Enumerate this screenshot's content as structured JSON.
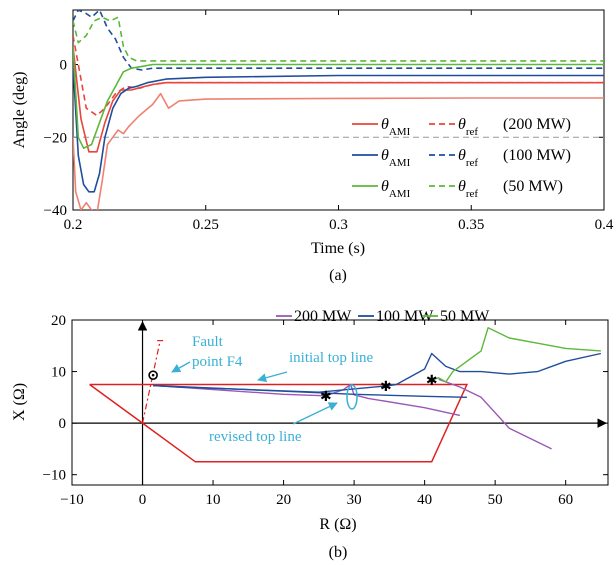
{
  "colors": {
    "red": "#e8453c",
    "blue": "#1f4e9c",
    "green": "#5cb83a",
    "purple": "#9b59b6",
    "cyan": "#3ab0d6",
    "gray": "#999999",
    "zone": "#e02020",
    "light_red": "#f08070"
  },
  "chart_data": [
    {
      "type": "line",
      "caption": "(a)",
      "xlabel": "Time (s)",
      "ylabel": "Angle (deg)",
      "xlim": [
        0.2,
        0.4
      ],
      "ylim": [
        -40,
        15
      ],
      "xticks": [
        "0.2",
        "0.25",
        "0.3",
        "0.35",
        "0.4"
      ],
      "yticks": [
        "−40",
        "−20",
        "0"
      ],
      "hline": -20,
      "grid": false,
      "legend_position": "lower-right",
      "legend": [
        {
          "sub_ami": "AMI",
          "sub_ref": "ref",
          "label": "(200 MW)",
          "color_key": "red"
        },
        {
          "sub_ami": "AMI",
          "sub_ref": "ref",
          "label": "(100 MW)",
          "color_key": "blue"
        },
        {
          "sub_ami": "AMI",
          "sub_ref": "ref",
          "label": "(50 MW)",
          "color_key": "green"
        }
      ],
      "theta": "θ",
      "series": [
        {
          "color_key": "light_red",
          "dash": false,
          "x": [
            0.2,
            0.201,
            0.203,
            0.205,
            0.207,
            0.209,
            0.211,
            0.213,
            0.215,
            0.217,
            0.219,
            0.221,
            0.225,
            0.23,
            0.233,
            0.236,
            0.24,
            0.25,
            0.3,
            0.35,
            0.4
          ],
          "y": [
            -20,
            -35,
            -40,
            -38,
            -40,
            -41,
            -32,
            -22,
            -20,
            -18,
            -19,
            -17,
            -14,
            -11,
            -8,
            -12,
            -10,
            -9.5,
            -9.3,
            -9.2,
            -9.2
          ]
        },
        {
          "color_key": "red",
          "dash": false,
          "x": [
            0.2,
            0.203,
            0.206,
            0.209,
            0.212,
            0.215,
            0.218,
            0.222,
            0.226,
            0.23,
            0.235,
            0.24,
            0.25,
            0.3,
            0.35,
            0.4
          ],
          "y": [
            5,
            -15,
            -24,
            -24,
            -16,
            -10,
            -7,
            -7,
            -6.2,
            -5.5,
            -5,
            -5,
            -5,
            -5,
            -5,
            -5
          ]
        },
        {
          "color_key": "red",
          "dash": true,
          "x": [
            0.2,
            0.205,
            0.209,
            0.212,
            0.216,
            0.22,
            0.225,
            0.23,
            0.235,
            0.24,
            0.25,
            0.3,
            0.35,
            0.4
          ],
          "y": [
            8,
            -12,
            -14,
            -12,
            -8,
            -6,
            -6.5,
            -5.5,
            -5,
            -5,
            -5,
            -5,
            -5,
            -5
          ]
        },
        {
          "color_key": "blue",
          "dash": false,
          "x": [
            0.2,
            0.202,
            0.204,
            0.206,
            0.208,
            0.21,
            0.212,
            0.215,
            0.218,
            0.221,
            0.224,
            0.228,
            0.235,
            0.25,
            0.3,
            0.35,
            0.4
          ],
          "y": [
            0,
            -25,
            -33,
            -35,
            -35,
            -30,
            -20,
            -12,
            -8,
            -6.5,
            -6,
            -5,
            -4,
            -3.5,
            -3,
            -3,
            -3
          ]
        },
        {
          "color_key": "blue",
          "dash": true,
          "x": [
            0.2,
            0.202,
            0.205,
            0.207,
            0.21,
            0.213,
            0.216,
            0.219,
            0.222,
            0.226,
            0.23,
            0.25,
            0.3,
            0.35,
            0.4
          ],
          "y": [
            12,
            15,
            14,
            13,
            15,
            10,
            7,
            2,
            -1,
            -1.5,
            -1,
            -1,
            -1,
            -1,
            -1
          ]
        },
        {
          "color_key": "green",
          "dash": false,
          "x": [
            0.2,
            0.202,
            0.204,
            0.207,
            0.21,
            0.213,
            0.216,
            0.219,
            0.222,
            0.226,
            0.23,
            0.25,
            0.3,
            0.35,
            0.4
          ],
          "y": [
            5,
            -20,
            -23,
            -22,
            -16,
            -10,
            -6,
            -2,
            -1,
            -0.5,
            0,
            0,
            0,
            0,
            0
          ]
        },
        {
          "color_key": "green",
          "dash": true,
          "x": [
            0.2,
            0.202,
            0.205,
            0.208,
            0.211,
            0.214,
            0.217,
            0.219,
            0.221,
            0.224,
            0.228,
            0.25,
            0.3,
            0.35,
            0.4
          ],
          "y": [
            12,
            6,
            8,
            12,
            13,
            12,
            13,
            5,
            2,
            1,
            1,
            1,
            1,
            1,
            1
          ]
        }
      ]
    },
    {
      "type": "line",
      "caption": "(b)",
      "xlabel": "R (Ω)",
      "ylabel": "X (Ω)",
      "xlim": [
        -10,
        66
      ],
      "ylim": [
        -12,
        20
      ],
      "xticks": [
        "−10",
        "0",
        "10",
        "20",
        "30",
        "40",
        "50",
        "60"
      ],
      "yticks": [
        "−10",
        "0",
        "10",
        "20"
      ],
      "grid": false,
      "legend_position": "top",
      "legend": [
        {
          "label": "200 MW",
          "color_key": "purple"
        },
        {
          "label": "100 MW",
          "color_key": "blue"
        },
        {
          "label": "50 MW",
          "color_key": "green"
        }
      ],
      "annotations": {
        "fault": [
          "Fault",
          "point F4"
        ],
        "initial": "initial top line",
        "revised": "revised top line"
      },
      "zone": {
        "x": [
          -7.5,
          46,
          41,
          7.5,
          0,
          -7.5
        ],
        "y": [
          7.5,
          7.5,
          -7.5,
          -7.5,
          0,
          7.5
        ]
      },
      "relay_line": {
        "x": [
          0,
          2.5
        ],
        "y": [
          0,
          16
        ]
      },
      "fault_point": {
        "x": 1.5,
        "y": 9.3
      },
      "markers": {
        "x": [
          26,
          34.5,
          41
        ],
        "y": [
          5.3,
          7.2,
          8.4
        ]
      },
      "series": [
        {
          "color_key": "purple",
          "x": [
            1.5,
            3,
            10,
            20,
            26,
            28.5,
            29.5,
            30,
            32,
            40,
            45
          ],
          "y": [
            7.3,
            7.2,
            6.5,
            5.6,
            5.3,
            6.5,
            7.5,
            5.5,
            4.8,
            3,
            1.5
          ]
        },
        {
          "color_key": "purple",
          "x": [
            42,
            45,
            48,
            52,
            58
          ],
          "y": [
            8.5,
            7,
            5,
            -1,
            -5
          ]
        },
        {
          "color_key": "blue",
          "x": [
            1.5,
            5,
            15,
            25,
            34.5,
            36,
            38,
            40,
            41,
            43,
            45,
            48,
            52,
            56,
            60,
            65
          ],
          "y": [
            7.3,
            7,
            6.5,
            6,
            7.2,
            7.5,
            9,
            10.5,
            13.5,
            11,
            10,
            10,
            9.5,
            10,
            12,
            13.5
          ]
        },
        {
          "color_key": "blue",
          "x": [
            1.5,
            10,
            20,
            30,
            40,
            46
          ],
          "y": [
            7.3,
            6.8,
            6.2,
            5.6,
            5.2,
            5
          ]
        },
        {
          "color_key": "green",
          "x": [
            41,
            42,
            43,
            44,
            45,
            46,
            47,
            48,
            49,
            52,
            56,
            60,
            65
          ],
          "y": [
            8.4,
            8.8,
            8,
            10,
            11,
            12,
            13,
            14,
            18.5,
            16.5,
            15.5,
            14.5,
            14
          ]
        }
      ]
    }
  ]
}
